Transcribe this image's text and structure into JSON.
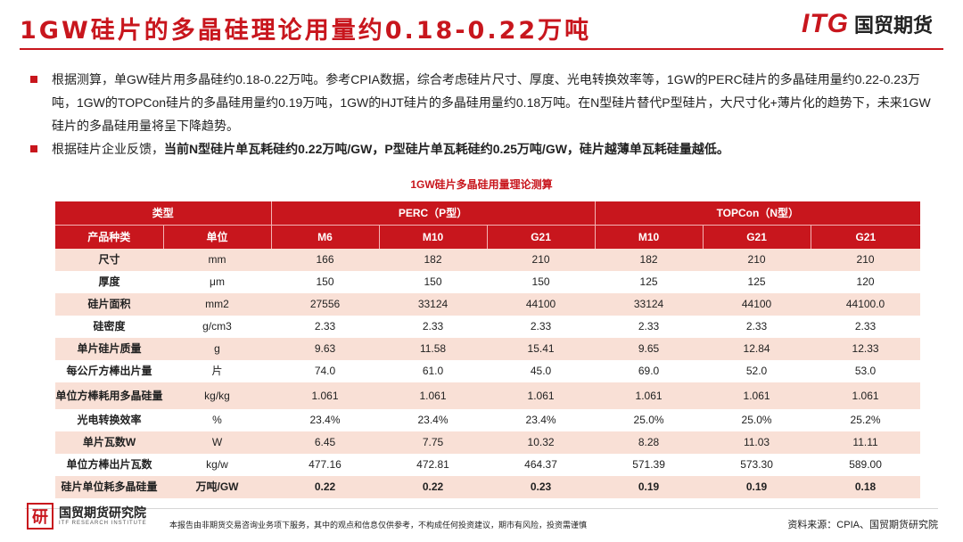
{
  "title": "1GW硅片的多晶硅理论用量约0.18-0.22万吨",
  "logo": {
    "itg": "ITG",
    "cn": "国贸期货"
  },
  "bullets": {
    "b1": "根据测算，单GW硅片用多晶硅约0.18-0.22万吨。参考CPIA数据，综合考虑硅片尺寸、厚度、光电转换效率等，1GW的PERC硅片的多晶硅用量约0.22-0.23万吨，1GW的TOPCon硅片的多晶硅用量约0.19万吨，1GW的HJT硅片的多晶硅用量约0.18万吨。在N型硅片替代P型硅片，大尺寸化+薄片化的趋势下，未来1GW硅片的多晶硅用量将呈下降趋势。",
    "b2_prefix": "根据硅片企业反馈，",
    "b2_bold": "当前N型硅片单瓦耗硅约0.22万吨/GW，P型硅片单瓦耗硅约0.25万吨/GW，硅片越薄单瓦耗硅量越低。"
  },
  "table": {
    "title": "1GW硅片多晶硅用量理论测算",
    "header1": {
      "type": "类型",
      "perc": "PERC（P型）",
      "topcon": "TOPCon（N型）"
    },
    "header2": [
      "产品种类",
      "单位",
      "M6",
      "M10",
      "G21",
      "M10",
      "G21",
      "G21"
    ],
    "rows": [
      {
        "cells": [
          "尺寸",
          "mm",
          "166",
          "182",
          "210",
          "182",
          "210",
          "210"
        ]
      },
      {
        "cells": [
          "厚度",
          "μm",
          "150",
          "150",
          "150",
          "125",
          "125",
          "120"
        ]
      },
      {
        "cells": [
          "硅片面积",
          "mm2",
          "27556",
          "33124",
          "44100",
          "33124",
          "44100",
          "44100.0"
        ]
      },
      {
        "cells": [
          "硅密度",
          "g/cm3",
          "2.33",
          "2.33",
          "2.33",
          "2.33",
          "2.33",
          "2.33"
        ]
      },
      {
        "cells": [
          "单片硅片质量",
          "g",
          "9.63",
          "11.58",
          "15.41",
          "9.65",
          "12.84",
          "12.33"
        ]
      },
      {
        "cells": [
          "每公斤方棒出片量",
          "片",
          "74.0",
          "61.0",
          "45.0",
          "69.0",
          "52.0",
          "53.0"
        ]
      },
      {
        "cells": [
          "单位方棒耗用多晶硅量",
          "kg/kg",
          "1.061",
          "1.061",
          "1.061",
          "1.061",
          "1.061",
          "1.061"
        ]
      },
      {
        "cells": [
          "光电转换效率",
          "%",
          "23.4%",
          "23.4%",
          "23.4%",
          "25.0%",
          "25.0%",
          "25.2%"
        ]
      },
      {
        "cells": [
          "单片瓦数W",
          "W",
          "6.45",
          "7.75",
          "10.32",
          "8.28",
          "11.03",
          "11.11"
        ]
      },
      {
        "cells": [
          "单位方棒出片瓦数",
          "kg/w",
          "477.16",
          "472.81",
          "464.37",
          "571.39",
          "573.30",
          "589.00"
        ]
      },
      {
        "cells": [
          "硅片单位耗多晶硅量",
          "万吨/GW",
          "0.22",
          "0.22",
          "0.23",
          "0.19",
          "0.19",
          "0.18"
        ]
      }
    ]
  },
  "footer": {
    "mark": "研",
    "institute_cn": "国贸期货研究院",
    "institute_en": "ITF RESEARCH INSTITUTE",
    "disclaimer": "本报告由非期货交易咨询业务项下服务，其中的观点和信息仅供参考，不构成任何投资建议，期市有风险，投资需谨慎",
    "source": "资料来源：CPIA、国贸期货研究院"
  },
  "colors": {
    "accent": "#c8161d",
    "row_alt": "#f9e0d6"
  }
}
